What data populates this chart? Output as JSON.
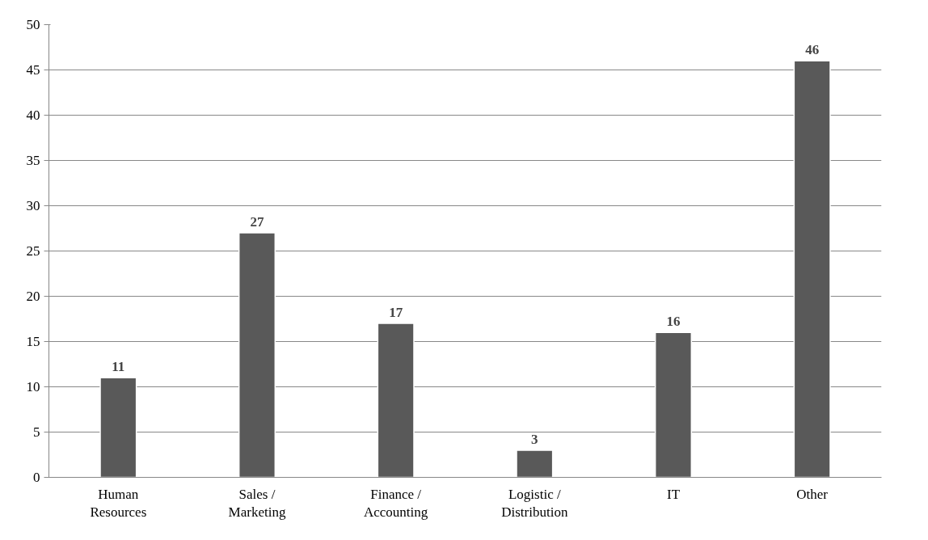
{
  "chart_data": {
    "type": "bar",
    "categories": [
      "Human Resources",
      "Sales / Marketing",
      "Finance / Accounting",
      "Logistic / Distribution",
      "IT",
      "Other"
    ],
    "values": [
      11,
      27,
      17,
      3,
      16,
      46
    ],
    "color": "#595959",
    "ylim": [
      0,
      50
    ],
    "yticks": [
      0,
      5,
      10,
      15,
      20,
      25,
      30,
      35,
      40,
      45,
      50
    ],
    "grid": "y",
    "data_labels": true
  }
}
